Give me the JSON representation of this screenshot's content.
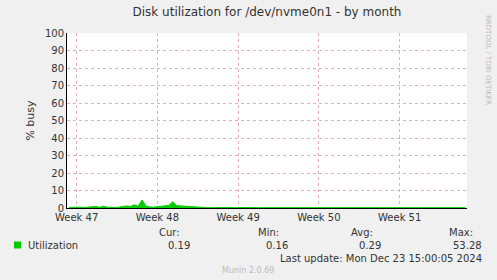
{
  "chart_data": {
    "type": "area",
    "title": "Disk utilization for /dev/nvme0n1 - by month",
    "y_label": "% busy",
    "categories": [
      null,
      null,
      "Week 47",
      null,
      null,
      null,
      null,
      null,
      null,
      null,
      null,
      null,
      null,
      null,
      null,
      null,
      null,
      null,
      null,
      null,
      null,
      null,
      null,
      "Week 48",
      null,
      null,
      null,
      null,
      null,
      null,
      null,
      null,
      null,
      null,
      null,
      null,
      null,
      null,
      null,
      null,
      null,
      null,
      null,
      null,
      "Week 49",
      null,
      null,
      null,
      null,
      null,
      null,
      null,
      null,
      null,
      null,
      null,
      null,
      null,
      null,
      null,
      null,
      null,
      null,
      null,
      null,
      "Week 50",
      null,
      null,
      null,
      null,
      null,
      null,
      null,
      null,
      null,
      null,
      null,
      null,
      null,
      null,
      null,
      null,
      null,
      null,
      null,
      null,
      "Week 51",
      null,
      null,
      null,
      null,
      null,
      null,
      null,
      null,
      null,
      null,
      null,
      null,
      null,
      null,
      null,
      null,
      null
    ],
    "series": [
      {
        "name": "Utilization",
        "color": "#00cc00",
        "values": [
          0.3,
          0.4,
          0.8,
          0.5,
          0.3,
          0.4,
          0.6,
          0.9,
          0.4,
          1.0,
          0.5,
          0.3,
          0.3,
          0.5,
          0.8,
          1.2,
          0.9,
          1.8,
          1.0,
          4.6,
          1.2,
          0.6,
          0.5,
          0.8,
          1.0,
          1.3,
          1.5,
          3.6,
          1.4,
          1.2,
          1.0,
          1.1,
          0.9,
          0.5,
          0.3,
          0.3,
          0.2,
          0.2,
          0.3,
          0.2,
          0.2,
          0.2,
          0.3,
          0.2,
          0.3,
          0.2,
          0.2,
          0.2,
          0.3,
          0.2,
          0.2,
          0.3,
          0.2,
          0.2,
          0.2,
          0.4,
          0.2,
          0.2,
          0.3,
          0.2,
          0.2,
          0.2,
          0.3,
          0.2,
          0.2,
          0.3,
          0.2,
          0.2,
          0.4,
          0.2,
          0.2,
          0.3,
          0.2,
          0.2,
          0.2,
          0.3,
          0.2,
          0.2,
          0.5,
          0.3,
          0.2,
          0.2,
          0.3,
          0.2,
          0.2,
          0.2,
          0.3,
          0.2,
          0.2,
          0.3,
          0.2,
          0.2,
          0.2,
          0.4,
          0.2,
          0.2,
          0.3,
          0.2,
          0.2,
          0.3,
          0.2,
          0.2,
          0.19,
          0.19
        ],
        "stats": [
          0.19,
          0.16,
          0.29,
          53.28
        ]
      }
    ],
    "stat_labels": [
      "Cur:",
      "Min:",
      "Avg:",
      "Max:"
    ],
    "ylim": [
      0,
      100
    ],
    "yticks": [
      0,
      10,
      20,
      30,
      40,
      50,
      60,
      70,
      80,
      90,
      100
    ],
    "grid": true,
    "annotations": [
      "Last update: Mon Dec 23 15:00:05 2024",
      "Munin 2.0.69",
      "RRDTOOL / TOBI OETIKER"
    ]
  }
}
